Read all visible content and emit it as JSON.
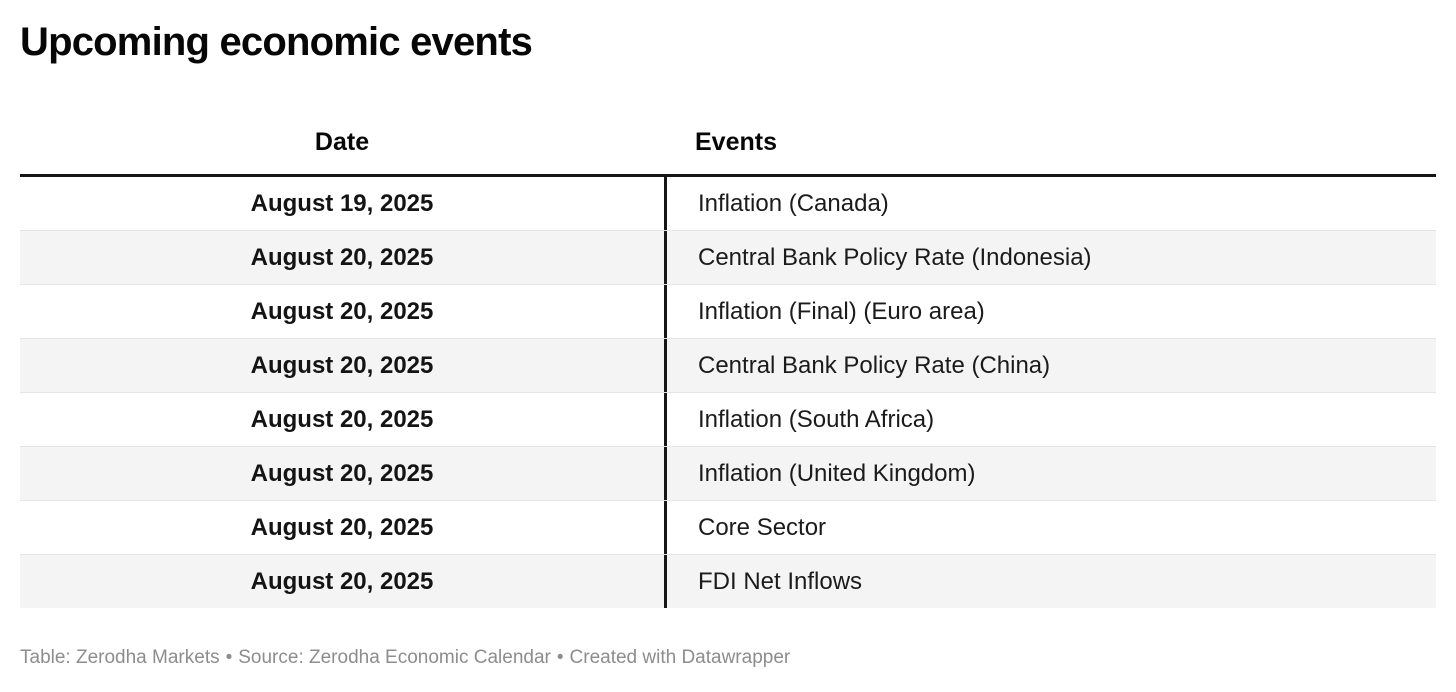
{
  "chart_data": {
    "type": "table",
    "title": "Upcoming economic events",
    "columns": [
      "Date",
      "Events"
    ],
    "rows": [
      [
        "August 19, 2025",
        "Inflation (Canada)"
      ],
      [
        "August 20, 2025",
        "Central Bank Policy Rate (Indonesia)"
      ],
      [
        "August 20, 2025",
        "Inflation (Final) (Euro area)"
      ],
      [
        "August 20, 2025",
        "Central Bank Policy Rate (China)"
      ],
      [
        "August 20, 2025",
        "Inflation (South Africa)"
      ],
      [
        "August 20, 2025",
        "Inflation (United Kingdom)"
      ],
      [
        "August 20, 2025",
        "Core Sector"
      ],
      [
        "August 20, 2025",
        "FDI Net Inflows"
      ]
    ],
    "layout": {
      "striped_rows": true,
      "date_column_alignment": "center",
      "events_column_alignment": "left"
    }
  },
  "footer": {
    "parts": [
      "Table: Zerodha Markets",
      "Source: Zerodha Economic Calendar",
      "Created with Datawrapper"
    ],
    "separator": "•"
  },
  "colors": {
    "background": "#ffffff",
    "title_text": "#070707",
    "body_text": "#161616",
    "header_rule": "#161616",
    "column_divider": "#161616",
    "stripe": "#f4f4f4",
    "row_separator": "#e5e5e5",
    "footer_text": "#8d8d8d"
  }
}
